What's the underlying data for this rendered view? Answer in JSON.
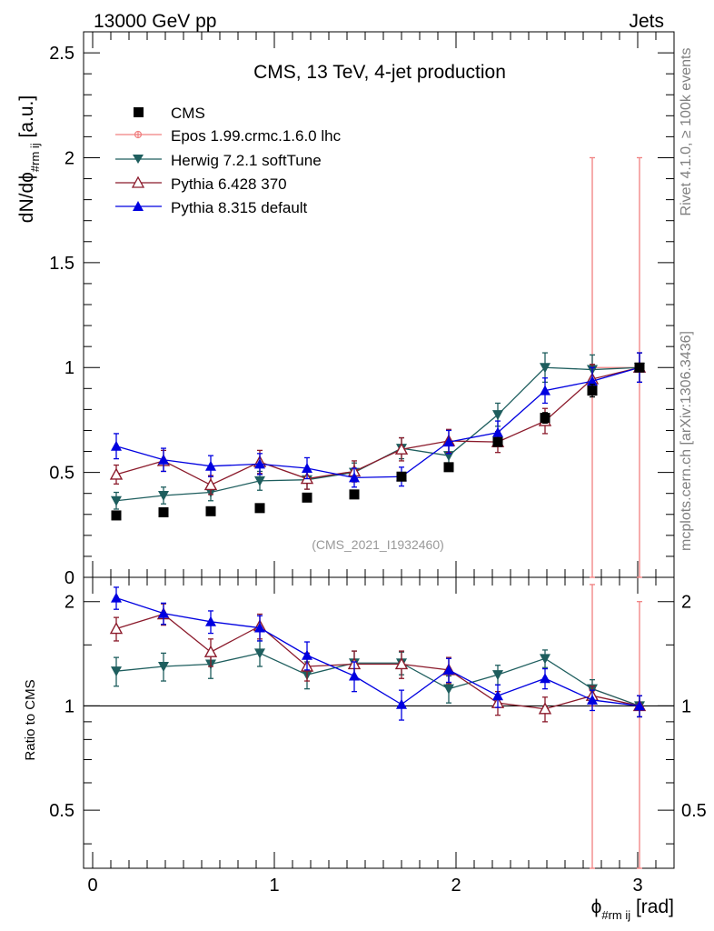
{
  "header": {
    "left": "13000 GeV pp",
    "right": "Jets"
  },
  "side_labels": {
    "rivet": "Rivet 4.1.0, ≥ 100k events",
    "mcplots": "mcplots.cern.ch [arXiv:1306.3436]"
  },
  "chart_data": {
    "type": "line",
    "title": "CMS, 13 TeV, 4-jet production",
    "watermark": "(CMS_2021_I1932460)",
    "xlabel_main": "ϕ",
    "xlabel_sub": "#rm ij",
    "xlabel_unit": "[rad]",
    "ylabel_main": "dN/dϕ",
    "ylabel_sub": "#rm ij",
    "ylabel_unit": "[a.u.]",
    "ratio_ylabel": "Ratio to CMS",
    "xlim": [
      -0.05,
      3.2
    ],
    "ylim": [
      0,
      2.6
    ],
    "ratio_ylim": [
      0.34,
      2.35
    ],
    "x_ticks": [
      0,
      1,
      2,
      3
    ],
    "x_tick_labels": [
      "0",
      "1",
      "2",
      "3"
    ],
    "y_ticks": [
      0,
      0.5,
      1,
      1.5,
      2,
      2.5
    ],
    "y_tick_labels": [
      "0",
      "0.5",
      "1",
      "1.5",
      "2",
      "2.5"
    ],
    "ratio_ticks": [
      0.5,
      1,
      2
    ],
    "ratio_tick_labels": [
      "0.5",
      "1",
      "2"
    ],
    "x": [
      0.13,
      0.39,
      0.65,
      0.92,
      1.18,
      1.44,
      1.7,
      1.96,
      2.23,
      2.49,
      2.75,
      3.01
    ],
    "data": {
      "name": "CMS",
      "values": [
        0.295,
        0.31,
        0.315,
        0.33,
        0.38,
        0.395,
        0.48,
        0.525,
        0.645,
        0.76,
        0.89,
        1.0
      ],
      "errors": [
        0.01,
        0.01,
        0.01,
        0.01,
        0.01,
        0.01,
        0.015,
        0.015,
        0.02,
        0.025,
        0.03,
        0.0
      ]
    },
    "series": [
      {
        "name": "Epos 1.99.crmc.1.6.0 lhc",
        "color": "#f08080",
        "marker": "cross",
        "values": [
          null,
          null,
          null,
          null,
          null,
          null,
          null,
          null,
          null,
          null,
          1.0,
          1.0
        ],
        "errors": [
          null,
          null,
          null,
          null,
          null,
          null,
          null,
          null,
          null,
          null,
          1.0,
          1.0
        ],
        "ratio": [
          null,
          null,
          null,
          null,
          null,
          null,
          null,
          null,
          null,
          null,
          1.12,
          1.0
        ],
        "ratio_errors": [
          null,
          null,
          null,
          null,
          null,
          null,
          null,
          null,
          null,
          null,
          1.12,
          1.0
        ]
      },
      {
        "name": "Herwig 7.2.1 softTune",
        "color": "#1e5e5e",
        "marker": "triangle-down",
        "values": [
          0.365,
          0.39,
          0.405,
          0.46,
          0.465,
          0.5,
          0.615,
          0.58,
          0.775,
          1.0,
          0.99,
          1.0
        ],
        "errors": [
          0.04,
          0.04,
          0.04,
          0.045,
          0.045,
          0.045,
          0.05,
          0.05,
          0.055,
          0.07,
          0.07,
          0.07
        ],
        "ratio": [
          1.26,
          1.3,
          1.32,
          1.42,
          1.23,
          1.33,
          1.33,
          1.12,
          1.23,
          1.37,
          1.12,
          1.0
        ],
        "ratio_errors": [
          0.12,
          0.12,
          0.12,
          0.12,
          0.11,
          0.11,
          0.1,
          0.1,
          0.08,
          0.08,
          0.07,
          0.07
        ]
      },
      {
        "name": "Pythia 6.428 370",
        "color": "#8b1a2b",
        "marker": "triangle-open",
        "values": [
          0.49,
          0.555,
          0.44,
          0.55,
          0.47,
          0.505,
          0.61,
          0.65,
          0.645,
          0.745,
          0.945,
          1.0
        ],
        "errors": [
          0.045,
          0.05,
          0.045,
          0.055,
          0.05,
          0.05,
          0.055,
          0.055,
          0.05,
          0.06,
          0.07,
          0.07
        ],
        "ratio": [
          1.67,
          1.84,
          1.43,
          1.7,
          1.3,
          1.32,
          1.32,
          1.27,
          1.02,
          0.98,
          1.07,
          1.0
        ],
        "ratio_errors": [
          0.13,
          0.13,
          0.13,
          0.14,
          0.12,
          0.12,
          0.12,
          0.11,
          0.08,
          0.08,
          0.07,
          0.07
        ]
      },
      {
        "name": "Pythia 8.315 default",
        "color": "#0000e0",
        "marker": "triangle-up",
        "values": [
          0.625,
          0.56,
          0.53,
          0.54,
          0.52,
          0.475,
          0.48,
          0.645,
          0.69,
          0.89,
          0.935,
          1.0
        ],
        "errors": [
          0.06,
          0.055,
          0.05,
          0.05,
          0.05,
          0.045,
          0.045,
          0.055,
          0.055,
          0.06,
          0.065,
          0.07
        ],
        "ratio": [
          2.05,
          1.85,
          1.75,
          1.68,
          1.4,
          1.22,
          1.01,
          1.27,
          1.07,
          1.2,
          1.04,
          1.0
        ],
        "ratio_errors": [
          0.15,
          0.13,
          0.13,
          0.14,
          0.13,
          0.12,
          0.1,
          0.1,
          0.08,
          0.08,
          0.07,
          0.07
        ]
      }
    ]
  }
}
